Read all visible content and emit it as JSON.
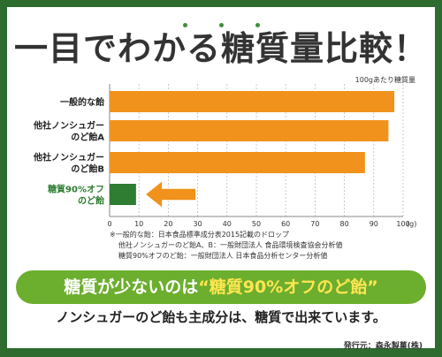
{
  "title": "一目でわかる糖質量比較！",
  "unit_note": "100gあたり糖質量",
  "chart_data": {
    "type": "bar",
    "orientation": "horizontal",
    "categories": [
      "一般的な飴",
      "他社ノンシュガーのど飴A",
      "他社ノンシュガーのど飴B",
      "糖質90%オフのど飴"
    ],
    "category_lines": [
      [
        "一般的な飴"
      ],
      [
        "他社ノンシュガー",
        "のど飴A"
      ],
      [
        "他社ノンシュガー",
        "のど飴B"
      ],
      [
        "糖質90%オフ",
        "のど飴"
      ]
    ],
    "values": [
      97,
      95,
      87,
      9
    ],
    "colors": [
      "#f0921c",
      "#f0921c",
      "#f0921c",
      "#2e7d32"
    ],
    "highlight_index": 3,
    "xlim": [
      0,
      100
    ],
    "x_ticks": [
      "0",
      "10",
      "20",
      "30",
      "40",
      "50",
      "60",
      "70",
      "80",
      "90",
      "100"
    ],
    "x_unit": "(g)",
    "grid": true
  },
  "footnotes": [
    "※一般的な飴：日本食品標準成分表2015記載のドロップ",
    "他社ノンシュガーのど飴A、B：一般財団法人 食品環境検査協会分析値",
    "糖質90%オフのど飴：一般財団法人 日本食品分析センター分析値"
  ],
  "banner": {
    "prefix": "糖質が少ないのは",
    "highlight": "“糖質90%オフのど飴”"
  },
  "subtext": "ノンシュガーのど飴も主成分は、糖質で出来ています。",
  "maker": "発行元：森永製菓(株)",
  "colors": {
    "frame": "#2e6b2e",
    "bar": "#f0921c",
    "highlight_bar": "#2e7d32",
    "banner": "#6cae2e",
    "banner_highlight": "#ffe650",
    "highlight_label": "#2e7d32"
  }
}
